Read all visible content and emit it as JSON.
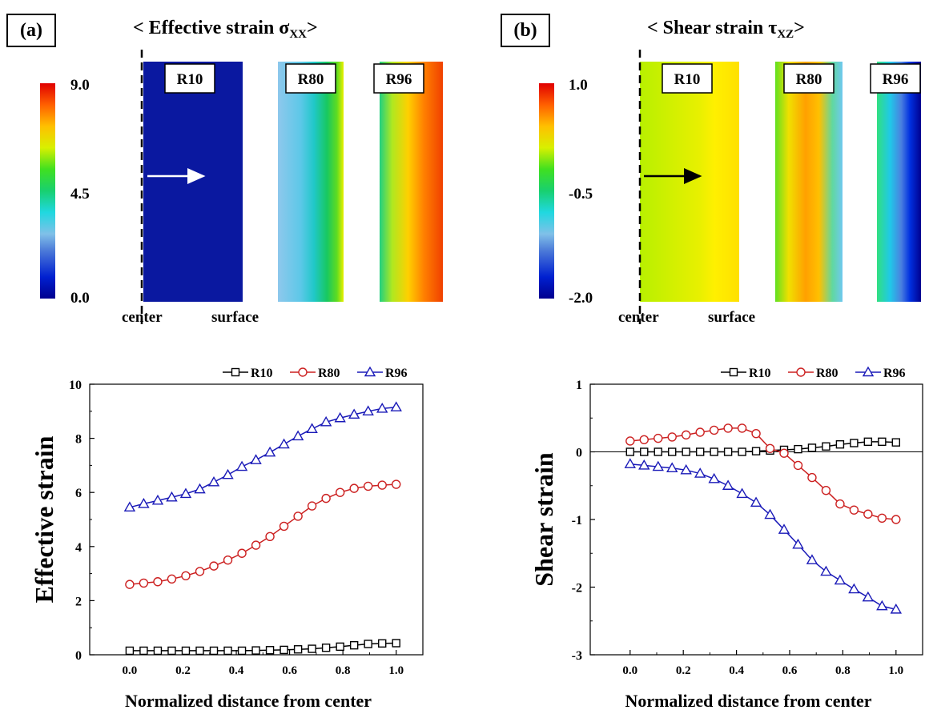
{
  "panels": {
    "a": {
      "label": "(a)",
      "title_main": "< Effective strain σ",
      "title_sub": "XX",
      "title_end": ">",
      "colorbar": {
        "max": "9.0",
        "mid": "4.5",
        "min": "0.0"
      },
      "maps": [
        "R10",
        "R80",
        "R96"
      ],
      "center_label": "center",
      "surface_label": "surface",
      "arrow_color": "#ffffff"
    },
    "b": {
      "label": "(b)",
      "title_main": "< Shear strain τ",
      "title_sub": "XZ",
      "title_end": ">",
      "colorbar": {
        "max": "1.0",
        "mid": "-0.5",
        "min": "-2.0"
      },
      "maps": [
        "R10",
        "R80",
        "R96"
      ],
      "center_label": "center",
      "surface_label": "surface",
      "arrow_color": "#000000"
    }
  },
  "colors": {
    "R10": "#000000",
    "R80": "#cc2020",
    "R96": "#1a1ab8"
  },
  "chart_data": [
    {
      "type": "line",
      "xlabel": "Normalized distance from center",
      "ylabel": "Effective strain",
      "xlim": [
        -0.15,
        1.1
      ],
      "ylim": [
        0,
        10
      ],
      "xticks": [
        "0.0",
        "0.2",
        "0.4",
        "0.6",
        "0.8",
        "1.0"
      ],
      "yticks": [
        "0",
        "2",
        "4",
        "6",
        "8",
        "10"
      ],
      "legend": "top-right",
      "x": [
        0,
        0.0526,
        0.1053,
        0.1579,
        0.2105,
        0.2632,
        0.3158,
        0.3684,
        0.4211,
        0.4737,
        0.5263,
        0.5789,
        0.6316,
        0.6842,
        0.7368,
        0.7895,
        0.8421,
        0.8947,
        0.9474,
        1.0
      ],
      "series": [
        {
          "name": "R10",
          "marker": "square",
          "values": [
            0.15,
            0.15,
            0.15,
            0.15,
            0.15,
            0.15,
            0.15,
            0.15,
            0.15,
            0.16,
            0.17,
            0.18,
            0.2,
            0.22,
            0.26,
            0.3,
            0.35,
            0.4,
            0.42,
            0.43
          ]
        },
        {
          "name": "R80",
          "marker": "circle",
          "values": [
            2.6,
            2.65,
            2.7,
            2.8,
            2.92,
            3.08,
            3.28,
            3.5,
            3.75,
            4.05,
            4.37,
            4.75,
            5.12,
            5.5,
            5.78,
            6.0,
            6.15,
            6.23,
            6.27,
            6.3
          ]
        },
        {
          "name": "R96",
          "marker": "triangle",
          "values": [
            5.45,
            5.58,
            5.7,
            5.82,
            5.95,
            6.12,
            6.38,
            6.65,
            6.95,
            7.2,
            7.48,
            7.78,
            8.08,
            8.35,
            8.6,
            8.75,
            8.88,
            9.0,
            9.1,
            9.15
          ]
        }
      ]
    },
    {
      "type": "line",
      "xlabel": "Normalized distance from center",
      "ylabel": "Shear strain",
      "xlim": [
        -0.15,
        1.1
      ],
      "ylim": [
        -3,
        1
      ],
      "xticks": [
        "0.0",
        "0.2",
        "0.4",
        "0.6",
        "0.8",
        "1.0"
      ],
      "yticks": [
        "-3",
        "-2",
        "-1",
        "0",
        "1"
      ],
      "legend": "top-right",
      "x": [
        0,
        0.0526,
        0.1053,
        0.1579,
        0.2105,
        0.2632,
        0.3158,
        0.3684,
        0.4211,
        0.4737,
        0.5263,
        0.5789,
        0.6316,
        0.6842,
        0.7368,
        0.7895,
        0.8421,
        0.8947,
        0.9474,
        1.0
      ],
      "series": [
        {
          "name": "R10",
          "marker": "square",
          "values": [
            0,
            0,
            0,
            0,
            0,
            0,
            0,
            0,
            0,
            0.01,
            0.02,
            0.03,
            0.04,
            0.06,
            0.08,
            0.11,
            0.13,
            0.15,
            0.15,
            0.14
          ]
        },
        {
          "name": "R80",
          "marker": "circle",
          "values": [
            0.16,
            0.18,
            0.2,
            0.22,
            0.25,
            0.29,
            0.32,
            0.35,
            0.35,
            0.27,
            0.05,
            -0.02,
            -0.2,
            -0.38,
            -0.57,
            -0.77,
            -0.86,
            -0.92,
            -0.98,
            -1.0
          ]
        },
        {
          "name": "R96",
          "marker": "triangle",
          "values": [
            -0.18,
            -0.2,
            -0.22,
            -0.24,
            -0.27,
            -0.32,
            -0.4,
            -0.5,
            -0.62,
            -0.75,
            -0.93,
            -1.15,
            -1.37,
            -1.6,
            -1.77,
            -1.9,
            -2.03,
            -2.15,
            -2.28,
            -2.33
          ]
        }
      ]
    }
  ]
}
